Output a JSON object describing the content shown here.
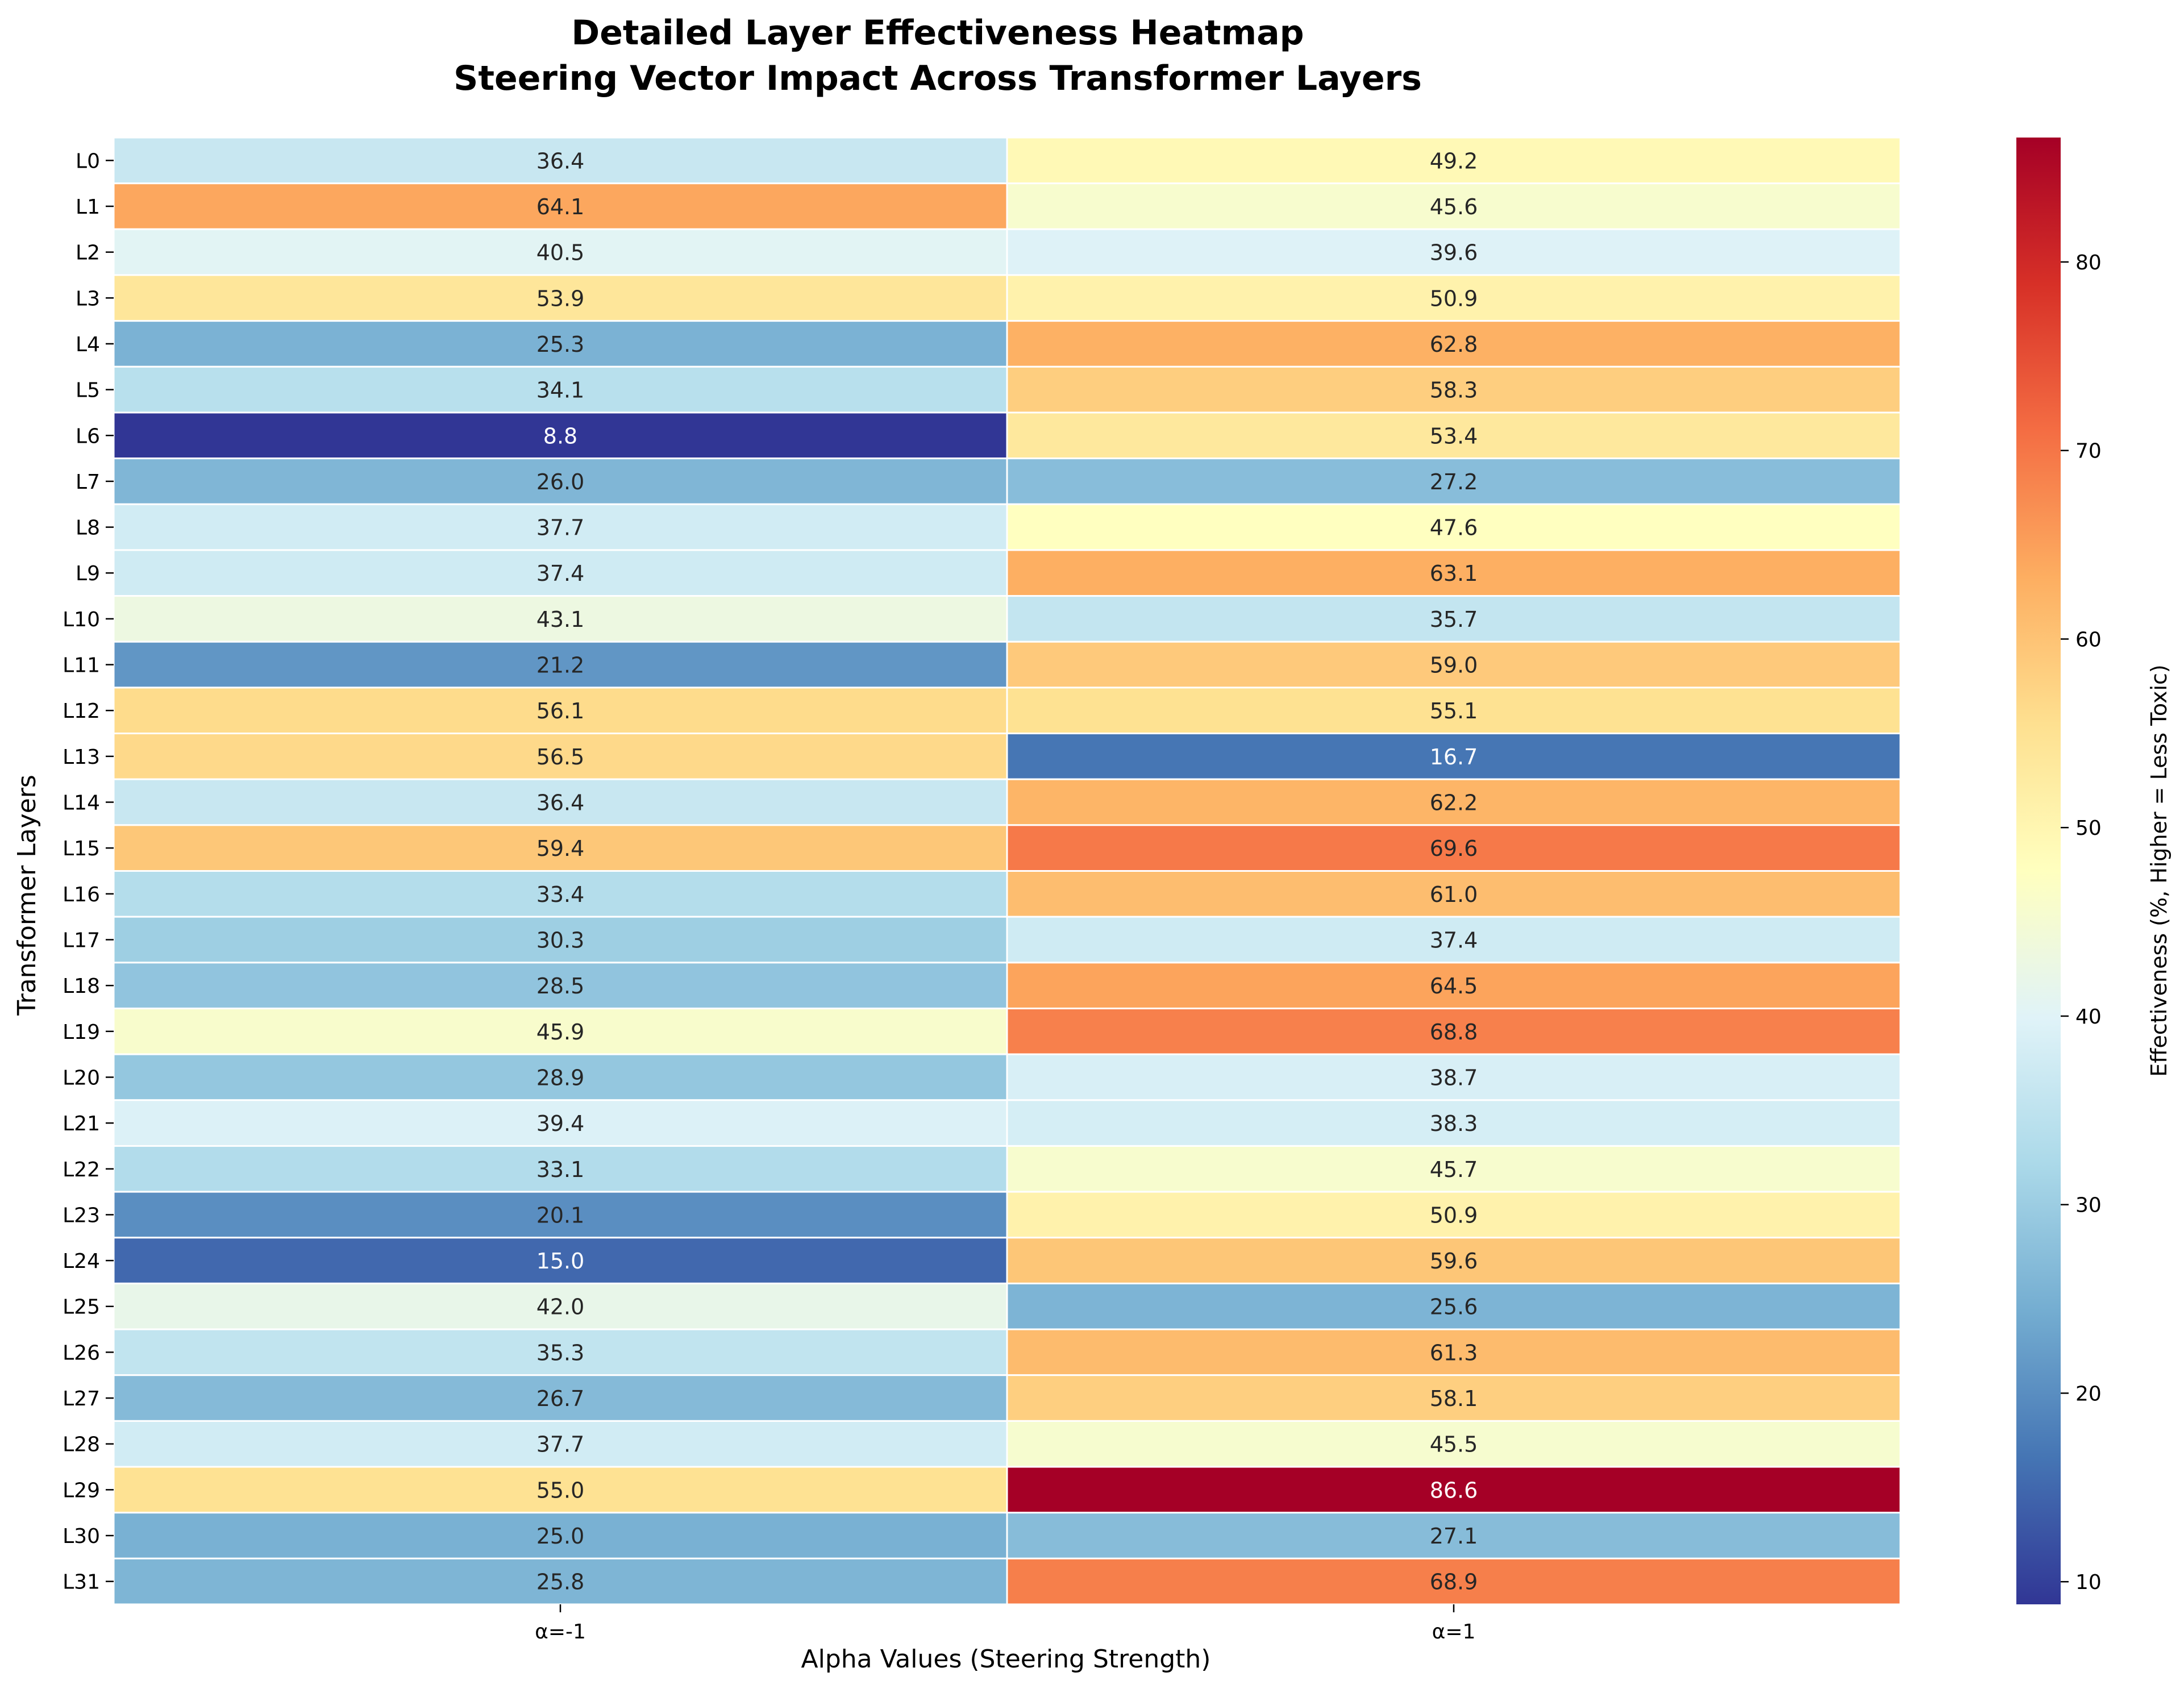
{
  "chart_data": {
    "type": "heatmap",
    "title": "Detailed Layer Effectiveness Heatmap",
    "subtitle": "Steering Vector Impact Across Transformer Layers",
    "xlabel": "Alpha Values (Steering Strength)",
    "ylabel": "Transformer Layers",
    "colorbar_label": "Effectiveness (%, Higher = Less Toxic)",
    "colormap": "RdYlBu_r",
    "color_range": [
      8.8,
      86.6
    ],
    "colorbar_ticks": [
      10,
      20,
      30,
      40,
      50,
      60,
      70,
      80
    ],
    "x_categories": [
      "α=-1",
      "α=1"
    ],
    "y_categories": [
      "L0",
      "L1",
      "L2",
      "L3",
      "L4",
      "L5",
      "L6",
      "L7",
      "L8",
      "L9",
      "L10",
      "L11",
      "L12",
      "L13",
      "L14",
      "L15",
      "L16",
      "L17",
      "L18",
      "L19",
      "L20",
      "L21",
      "L22",
      "L23",
      "L24",
      "L25",
      "L26",
      "L27",
      "L28",
      "L29",
      "L30",
      "L31"
    ],
    "series": [
      {
        "name": "α=-1",
        "values": [
          36.4,
          64.1,
          40.5,
          53.9,
          25.3,
          34.1,
          8.8,
          26.0,
          37.7,
          37.4,
          43.1,
          21.2,
          56.1,
          56.5,
          36.4,
          59.4,
          33.4,
          30.3,
          28.5,
          45.9,
          28.9,
          39.4,
          33.1,
          20.1,
          15.0,
          42.0,
          35.3,
          26.7,
          37.7,
          55.0,
          25.0,
          25.8
        ]
      },
      {
        "name": "α=1",
        "values": [
          49.2,
          45.6,
          39.6,
          50.9,
          62.8,
          58.3,
          53.4,
          27.2,
          47.6,
          63.1,
          35.7,
          59.0,
          55.1,
          16.7,
          62.2,
          69.6,
          61.0,
          37.4,
          64.5,
          68.8,
          38.7,
          38.3,
          45.7,
          50.9,
          59.6,
          25.6,
          61.3,
          58.1,
          45.5,
          86.6,
          27.1,
          68.9
        ]
      }
    ]
  }
}
